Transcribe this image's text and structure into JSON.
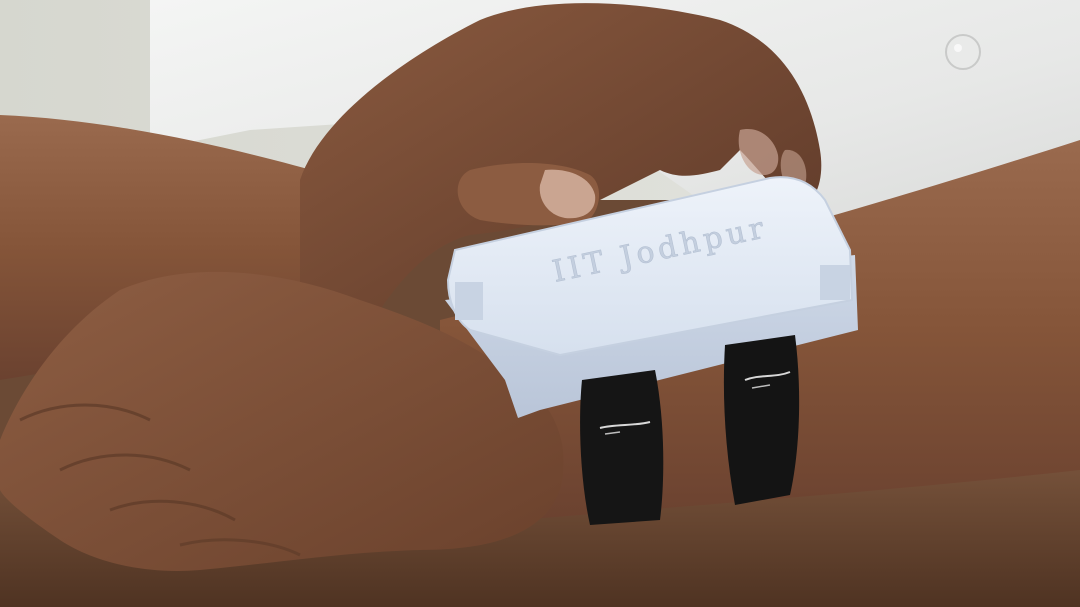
{
  "scene": {
    "device": {
      "engraved_text": "IIT Jodhpur",
      "color": "#dfe8f4"
    },
    "colors": {
      "background_wall": "#d9dbd5",
      "shirt": "#ecedec",
      "table": "#5f3e2a",
      "skin": "#8a5a40",
      "strap": "#141414"
    }
  }
}
